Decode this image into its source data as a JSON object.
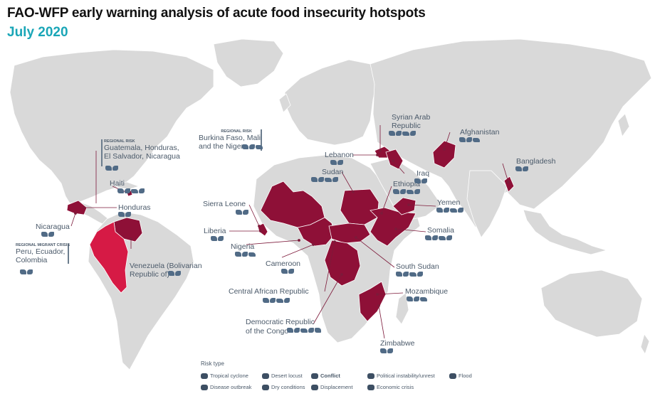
{
  "title": "FAO-WFP early warning analysis of acute food insecurity hotspots",
  "subtitle": "July 2020",
  "colors": {
    "land": "#d9d9d9",
    "hotspot": "#8e1037",
    "regional_hotspot": "#d61a45",
    "leader": "#7d1a3a",
    "label": "#4b5a6a",
    "subtitle": "#1aa6b7"
  },
  "regional": {
    "central_america": {
      "tag": "REGIONAL RISK",
      "text": [
        "Guatemala, Honduras,",
        "El Salvador, Nicaragua"
      ]
    },
    "sahel": {
      "tag": "REGIONAL RISK",
      "text": [
        "Burkina Faso, Mali",
        "and the Niger"
      ]
    },
    "migrant": {
      "tag": "REGIONAL MIGRANT CRISIS",
      "text": [
        "Peru, Ecuador,",
        "Colombia"
      ]
    }
  },
  "countries": {
    "haiti": "Haiti",
    "honduras": "Honduras",
    "nicaragua": "Nicaragua",
    "venezuela": [
      "Venezuela (Bolivarian",
      "Republic of)"
    ],
    "sierra_leone": "Sierra Leone",
    "liberia": "Liberia",
    "nigeria": "Nigeria",
    "cameroon": "Cameroon",
    "car": "Central African Republic",
    "drc": [
      "Democratic Republic",
      "of the Congo"
    ],
    "zimbabwe": "Zimbabwe",
    "mozambique": "Mozambique",
    "south_sudan": "South Sudan",
    "somalia": "Somalia",
    "yemen": "Yemen",
    "ethiopia": "Ethiopia",
    "sudan": "Sudan",
    "lebanon": "Lebanon",
    "syria": [
      "Syrian Arab",
      "Republic"
    ],
    "iraq": "Iraq",
    "afghanistan": "Afghanistan",
    "bangladesh": "Bangladesh"
  },
  "legend": {
    "title": "Risk type",
    "items": {
      "tropical_cyclone": "Tropical cyclone",
      "desert_locust": "Desert locust",
      "conflict": "Conflict",
      "political": "Political instability/unrest",
      "flood": "Flood",
      "disease": "Disease outbreak",
      "dry": "Dry conditions",
      "displacement": "Displacement",
      "economic": "Economic crisis"
    }
  }
}
